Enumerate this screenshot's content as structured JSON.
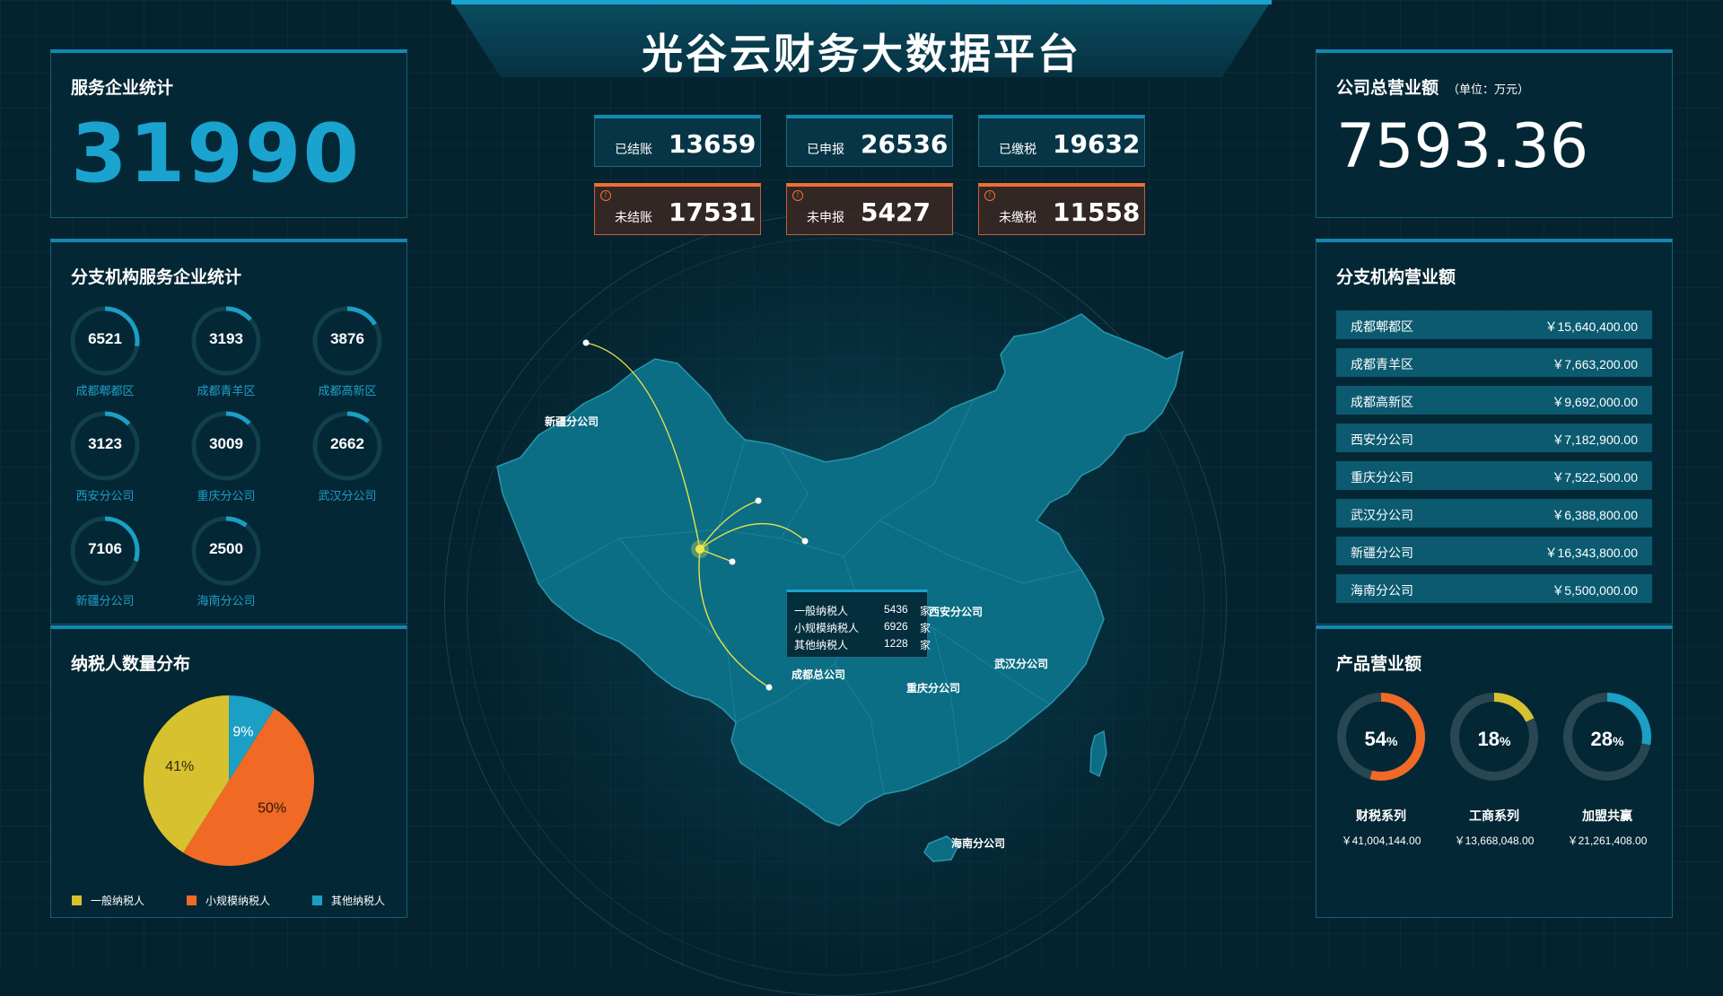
{
  "header": {
    "title": "光谷云财务大数据平台"
  },
  "service_stats": {
    "title": "服务企业统计",
    "value": "31990"
  },
  "company_revenue": {
    "title": "公司总营业额",
    "unit": "（单位：万元）",
    "value": "7593.36"
  },
  "stats": [
    {
      "label": "已结账",
      "value": "13659",
      "warn": false
    },
    {
      "label": "已申报",
      "value": "26536",
      "warn": false
    },
    {
      "label": "已缴税",
      "value": "19632",
      "warn": false
    },
    {
      "label": "未结账",
      "value": "17531",
      "warn": true
    },
    {
      "label": "未申报",
      "value": "5427",
      "warn": true
    },
    {
      "label": "未缴税",
      "value": "11558",
      "warn": true
    }
  ],
  "branch_services": {
    "title": "分支机构服务企业统计",
    "max": 7106,
    "items": [
      {
        "name": "成都郫都区",
        "value": "6521"
      },
      {
        "name": "成都青羊区",
        "value": "3193"
      },
      {
        "name": "成都高新区",
        "value": "3876"
      },
      {
        "name": "西安分公司",
        "value": "3123"
      },
      {
        "name": "重庆分公司",
        "value": "3009"
      },
      {
        "name": "武汉分公司",
        "value": "2662"
      },
      {
        "name": "新疆分公司",
        "value": "7106"
      },
      {
        "name": "海南分公司",
        "value": "2500"
      }
    ]
  },
  "taxpayer_distribution": {
    "title": "纳税人数量分布",
    "slices": [
      {
        "name": "一般纳税人",
        "pct": 41,
        "label": "41%",
        "color": "#d8c12e"
      },
      {
        "name": "小规模纳税人",
        "pct": 50,
        "label": "50%",
        "color": "#f06a26"
      },
      {
        "name": "其他纳税人",
        "pct": 9,
        "label": "9%",
        "color": "#1b9fc4"
      }
    ]
  },
  "branch_revenue": {
    "title": "分支机构营业额",
    "rows": [
      {
        "name": "成都郫都区",
        "value": "￥15,640,400.00"
      },
      {
        "name": "成都青羊区",
        "value": "￥7,663,200.00"
      },
      {
        "name": "成都高新区",
        "value": "￥9,692,000.00"
      },
      {
        "name": "西安分公司",
        "value": "￥7,182,900.00"
      },
      {
        "name": "重庆分公司",
        "value": "￥7,522,500.00"
      },
      {
        "name": "武汉分公司",
        "value": "￥6,388,800.00"
      },
      {
        "name": "新疆分公司",
        "value": "￥16,343,800.00"
      },
      {
        "name": "海南分公司",
        "value": "￥5,500,000.00"
      }
    ]
  },
  "product_revenue": {
    "title": "产品营业额",
    "items": [
      {
        "name": "财税系列",
        "pct": 54,
        "pct_label": "54",
        "value": "￥41,004,144.00",
        "color": "#f06a26"
      },
      {
        "name": "工商系列",
        "pct": 18,
        "pct_label": "18",
        "value": "￥13,668,048.00",
        "color": "#d8c12e"
      },
      {
        "name": "加盟共赢",
        "pct": 28,
        "pct_label": "28",
        "value": "￥21,261,408.00",
        "color": "#1b9fc4"
      }
    ]
  },
  "map": {
    "hq": "成都总公司",
    "branches": {
      "xinjiang": "新疆分公司",
      "xian": "西安分公司",
      "wuhan": "武汉分公司",
      "chongqing": "重庆分公司",
      "hainan": "海南分公司"
    },
    "tooltip": [
      {
        "name": "一般纳税人",
        "value": "5436",
        "unit": "家"
      },
      {
        "name": "小规模纳税人",
        "value": "6926",
        "unit": "家"
      },
      {
        "name": "其他纳税人",
        "value": "1228",
        "unit": "家"
      }
    ]
  },
  "colors": {
    "accent": "#1289b2",
    "warn": "#f07030",
    "map_fill": "#0b6e84",
    "route": "#e6e24a"
  }
}
